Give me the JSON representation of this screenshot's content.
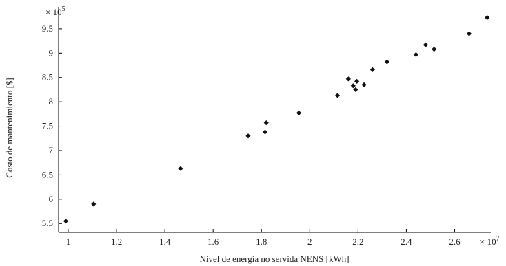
{
  "chart_data": {
    "type": "scatter",
    "xlabel": "Nivel de energía no servida NENS [kWh]",
    "ylabel": "Costo de mantenimiento  [$]",
    "x_multiplier": {
      "base": "× 10",
      "exp": "7"
    },
    "y_multiplier": {
      "base": "× 10",
      "exp": "5"
    },
    "xlim": [
      0.96,
      2.75
    ],
    "ylim": [
      5.32,
      9.95
    ],
    "xticks": [
      1,
      1.2,
      1.4,
      1.6,
      1.8,
      2,
      2.2,
      2.4,
      2.6
    ],
    "xtick_labels": [
      "1",
      "1.2",
      "1.4",
      "1.6",
      "1.8",
      "2",
      "2.2",
      "2.4",
      "2.6"
    ],
    "yticks": [
      5.5,
      6,
      6.5,
      7,
      7.5,
      8,
      8.5,
      9,
      9.5
    ],
    "ytick_labels": [
      "5.5",
      "6",
      "6.5",
      "7",
      "7.5",
      "8",
      "8.5",
      "9",
      "9.5"
    ],
    "grid": false,
    "marker": "diamond",
    "marker_color": "#111111",
    "x": [
      0.99,
      1.105,
      1.465,
      1.745,
      1.815,
      1.82,
      1.955,
      2.115,
      2.16,
      2.18,
      2.195,
      2.19,
      2.225,
      2.26,
      2.32,
      2.44,
      2.48,
      2.515,
      2.66,
      2.735
    ],
    "y": [
      5.55,
      5.9,
      6.63,
      7.3,
      7.38,
      7.57,
      7.77,
      8.13,
      8.47,
      8.33,
      8.42,
      8.25,
      8.35,
      8.66,
      8.82,
      8.97,
      9.17,
      9.08,
      9.4,
      9.73
    ]
  }
}
